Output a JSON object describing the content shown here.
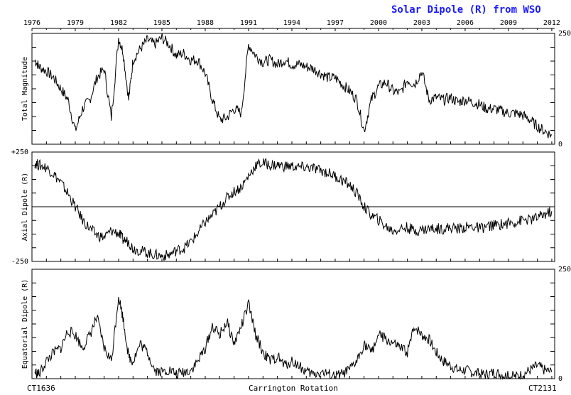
{
  "title": "Solar Dipole (R) from WSO",
  "title_color": "#1a1aff",
  "footer": {
    "left": "CT1636",
    "center": "Carrington Rotation",
    "right": "CT2131"
  },
  "chart_data": [
    {
      "type": "line",
      "ylabel": "Total Magnitude",
      "ylim": [
        0,
        250
      ],
      "yticks_left": [],
      "yticks_right": [
        "250",
        "0"
      ],
      "top_axis_labels": [
        "1976",
        "1979",
        "1982",
        "1985",
        "1988",
        "1991",
        "1994",
        "1997",
        "2000",
        "2003",
        "2006",
        "2009",
        "2012"
      ],
      "x_range": [
        1976,
        2012.2
      ],
      "series": [
        {
          "x": [
            1976.2,
            1976.5,
            1977,
            1977.5,
            1978,
            1978.5,
            1979,
            1979.5,
            1980,
            1980.5,
            1981,
            1981.5,
            1982,
            1982.3,
            1982.7,
            1983,
            1983.5,
            1984,
            1984.5,
            1985,
            1985.5,
            1986,
            1986.5,
            1987,
            1987.5,
            1988,
            1988.5,
            1989,
            1989.5,
            1990,
            1990.5,
            1991,
            1991.5,
            1992,
            1992.5,
            1993,
            1993.5,
            1994,
            1994.5,
            1995,
            1995.5,
            1996,
            1996.5,
            1997,
            1997.5,
            1998,
            1998.5,
            1999,
            1999.5,
            2000,
            2000.5,
            2001,
            2001.5,
            2002,
            2002.5,
            2003,
            2003.5,
            2004,
            2004.5,
            2005,
            2005.5,
            2006,
            2006.5,
            2007,
            2007.5,
            2008,
            2008.5,
            2009,
            2009.5,
            2010,
            2010.5,
            2011,
            2011.5,
            2012
          ],
          "y": [
            190,
            175,
            165,
            150,
            125,
            100,
            30,
            80,
            100,
            150,
            170,
            60,
            240,
            210,
            100,
            190,
            215,
            235,
            225,
            240,
            225,
            200,
            205,
            190,
            190,
            160,
            100,
            55,
            60,
            80,
            70,
            225,
            200,
            185,
            190,
            180,
            190,
            180,
            180,
            175,
            170,
            160,
            150,
            150,
            135,
            120,
            100,
            30,
            100,
            130,
            140,
            120,
            115,
            145,
            135,
            165,
            100,
            105,
            100,
            105,
            95,
            100,
            95,
            90,
            80,
            80,
            75,
            70,
            70,
            65,
            55,
            40,
            30,
            20
          ]
        }
      ]
    },
    {
      "type": "line",
      "ylabel": "Axial Dipole (R)",
      "ylim": [
        -250,
        250
      ],
      "yticks_left": [
        "+250",
        "-250"
      ],
      "yticks_right": [],
      "zero_line": true,
      "x_range": [
        1976,
        2012.2
      ],
      "series": [
        {
          "x": [
            1976.2,
            1976.5,
            1977,
            1977.5,
            1978,
            1978.5,
            1979,
            1979.5,
            1980,
            1980.5,
            1981,
            1981.5,
            1982,
            1982.3,
            1982.7,
            1983,
            1983.5,
            1984,
            1984.5,
            1985,
            1985.5,
            1986,
            1986.5,
            1987,
            1987.5,
            1988,
            1988.5,
            1989,
            1989.5,
            1990,
            1990.5,
            1991,
            1991.5,
            1992,
            1992.5,
            1993,
            1993.5,
            1994,
            1994.5,
            1995,
            1995.5,
            1996,
            1996.5,
            1997,
            1997.5,
            1998,
            1998.5,
            1999,
            1999.5,
            2000,
            2000.5,
            2001,
            2001.5,
            2002,
            2002.5,
            2003,
            2003.5,
            2004,
            2004.5,
            2005,
            2005.5,
            2006,
            2006.5,
            2007,
            2007.5,
            2008,
            2008.5,
            2009,
            2009.5,
            2010,
            2010.5,
            2011,
            2011.5,
            2012
          ],
          "y": [
            200,
            190,
            180,
            150,
            110,
            60,
            0,
            -60,
            -100,
            -130,
            -140,
            -110,
            -120,
            -150,
            -160,
            -190,
            -200,
            -210,
            -220,
            -225,
            -220,
            -200,
            -190,
            -160,
            -120,
            -70,
            -40,
            0,
            40,
            70,
            90,
            140,
            190,
            200,
            190,
            190,
            185,
            185,
            180,
            180,
            175,
            165,
            155,
            140,
            120,
            100,
            60,
            0,
            -40,
            -60,
            -90,
            -110,
            -100,
            -95,
            -110,
            -105,
            -100,
            -100,
            -100,
            -95,
            -100,
            -95,
            -90,
            -100,
            -90,
            -85,
            -80,
            -75,
            -70,
            -60,
            -60,
            -50,
            -35,
            -20
          ]
        }
      ]
    },
    {
      "type": "line",
      "ylabel": "Equatorial Dipole (R)",
      "ylim": [
        0,
        250
      ],
      "yticks_left": [],
      "yticks_right": [
        "250",
        "0"
      ],
      "x_range": [
        1976,
        2012.2
      ],
      "series": [
        {
          "x": [
            1976.2,
            1976.5,
            1977,
            1977.5,
            1978,
            1978.5,
            1979,
            1979.5,
            1980,
            1980.5,
            1981,
            1981.5,
            1982,
            1982.3,
            1982.7,
            1983,
            1983.5,
            1984,
            1984.5,
            1985,
            1985.5,
            1986,
            1986.5,
            1987,
            1987.5,
            1988,
            1988.5,
            1989,
            1989.5,
            1990,
            1990.5,
            1991,
            1991.5,
            1992,
            1992.5,
            1993,
            1993.5,
            1994,
            1994.5,
            1995,
            1995.5,
            1996,
            1996.5,
            1997,
            1997.5,
            1998,
            1998.5,
            1999,
            1999.5,
            2000,
            2000.5,
            2001,
            2001.5,
            2002,
            2002.5,
            2003,
            2003.5,
            2004,
            2004.5,
            2005,
            2005.5,
            2006,
            2006.5,
            2007,
            2007.5,
            2008,
            2008.5,
            2009,
            2009.5,
            2010,
            2010.5,
            2011,
            2011.5,
            2012
          ],
          "y": [
            15,
            10,
            40,
            60,
            70,
            110,
            100,
            70,
            100,
            140,
            70,
            40,
            190,
            140,
            50,
            40,
            80,
            60,
            20,
            15,
            20,
            10,
            15,
            20,
            40,
            70,
            120,
            100,
            130,
            80,
            120,
            170,
            100,
            60,
            40,
            50,
            30,
            40,
            30,
            15,
            10,
            15,
            10,
            5,
            10,
            20,
            40,
            80,
            60,
            100,
            90,
            80,
            70,
            60,
            120,
            100,
            90,
            60,
            40,
            30,
            20,
            20,
            15,
            10,
            10,
            15,
            10,
            5,
            5,
            10,
            20,
            30,
            20,
            15
          ]
        }
      ]
    }
  ]
}
